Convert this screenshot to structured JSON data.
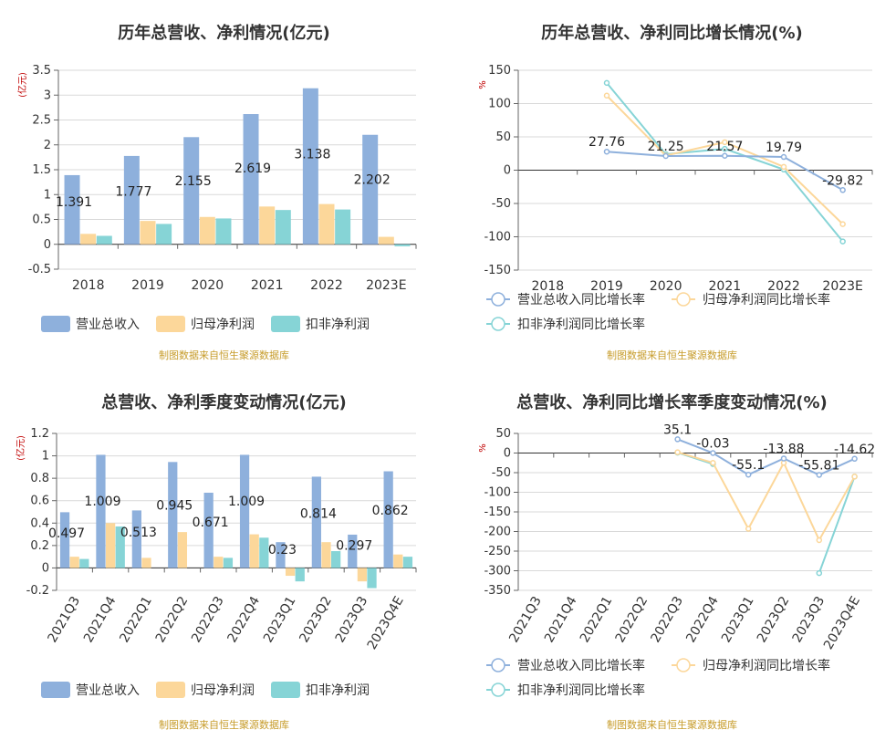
{
  "chart_data": [
    {
      "id": "annual_bar",
      "type": "bar",
      "title": "历年总营收、净利情况(亿元)",
      "ylabel": "(亿元)",
      "source": "制图数据来自恒生聚源数据库",
      "categories": [
        "2018",
        "2019",
        "2020",
        "2021",
        "2022",
        "2023E"
      ],
      "ylim": [
        -0.5,
        3.5
      ],
      "yticks": [
        -0.5,
        0,
        0.5,
        1,
        1.5,
        2,
        2.5,
        3,
        3.5
      ],
      "series": [
        {
          "name": "营业总收入",
          "color": "#8eb0dc",
          "values": [
            1.391,
            1.777,
            2.155,
            2.619,
            3.138,
            2.202
          ]
        },
        {
          "name": "归母净利润",
          "color": "#fcd79a",
          "values": [
            0.21,
            0.47,
            0.55,
            0.76,
            0.81,
            0.15
          ]
        },
        {
          "name": "扣非净利润",
          "color": "#86d4d6",
          "values": [
            0.17,
            0.41,
            0.52,
            0.69,
            0.7,
            -0.04
          ]
        }
      ],
      "data_labels": [
        "1.391",
        "1.777",
        "2.155",
        "2.619",
        "3.138",
        "2.202"
      ],
      "grid": true,
      "legend": "bottom"
    },
    {
      "id": "annual_line",
      "type": "line",
      "title": "历年总营收、净利同比增长情况(%)",
      "ylabel": "%",
      "source": "制图数据来自恒生聚源数据库",
      "categories": [
        "2018",
        "2019",
        "2020",
        "2021",
        "2022",
        "2023E"
      ],
      "ylim": [
        -150,
        150
      ],
      "yticks": [
        -150,
        -100,
        -50,
        0,
        50,
        100,
        150
      ],
      "series": [
        {
          "name": "营业总收入同比增长率",
          "color": "#8eb0dc",
          "values": [
            null,
            27.76,
            21.25,
            21.57,
            19.79,
            -29.82
          ]
        },
        {
          "name": "归母净利润同比增长率",
          "color": "#fcd79a",
          "values": [
            null,
            112,
            22,
            42,
            5,
            -81
          ]
        },
        {
          "name": "扣非净利润同比增长率",
          "color": "#86d4d6",
          "values": [
            null,
            131,
            24,
            32,
            1,
            -107
          ]
        }
      ],
      "data_labels": [
        "",
        "27.76",
        "21.25",
        "21.57",
        "19.79",
        "-29.82"
      ],
      "grid": true,
      "legend": "bottom"
    },
    {
      "id": "quarter_bar",
      "type": "bar",
      "title": "总营收、净利季度变动情况(亿元)",
      "ylabel": "(亿元)",
      "source": "制图数据来自恒生聚源数据库",
      "categories": [
        "2021Q3",
        "2021Q4",
        "2022Q1",
        "2022Q2",
        "2022Q3",
        "2022Q4",
        "2023Q1",
        "2023Q2",
        "2023Q3",
        "2023Q4E"
      ],
      "ylim": [
        -0.2,
        1.2
      ],
      "yticks": [
        -0.2,
        0,
        0.2,
        0.4,
        0.6,
        0.8,
        1,
        1.2
      ],
      "series": [
        {
          "name": "营业总收入",
          "color": "#8eb0dc",
          "values": [
            0.497,
            1.009,
            0.513,
            0.945,
            0.671,
            1.009,
            0.23,
            0.814,
            0.297,
            0.862
          ]
        },
        {
          "name": "归母净利润",
          "color": "#fcd79a",
          "values": [
            0.1,
            0.4,
            0.09,
            0.32,
            0.1,
            0.3,
            -0.07,
            0.23,
            -0.12,
            0.12
          ]
        },
        {
          "name": "扣非净利润",
          "color": "#86d4d6",
          "values": [
            0.08,
            0.37,
            null,
            null,
            0.09,
            0.27,
            -0.12,
            0.15,
            -0.18,
            0.1
          ]
        }
      ],
      "data_labels": [
        "0.497",
        "1.009",
        "0.513",
        "0.945",
        "0.671",
        "1.009",
        "0.23",
        "0.814",
        "0.297",
        "0.862"
      ],
      "grid": true,
      "legend": "bottom"
    },
    {
      "id": "quarter_line",
      "type": "line",
      "title": "总营收、净利同比增长率季度变动情况(%)",
      "ylabel": "%",
      "source": "制图数据来自恒生聚源数据库",
      "categories": [
        "2021Q3",
        "2021Q4",
        "2022Q1",
        "2022Q2",
        "2022Q3",
        "2022Q4",
        "2023Q1",
        "2023Q2",
        "2023Q3",
        "2023Q4E"
      ],
      "ylim": [
        -350,
        50
      ],
      "yticks": [
        -350,
        -300,
        -250,
        -200,
        -150,
        -100,
        -50,
        0,
        50
      ],
      "series": [
        {
          "name": "营业总收入同比增长率",
          "color": "#8eb0dc",
          "values": [
            null,
            null,
            null,
            null,
            35.1,
            -0.03,
            -55.1,
            -13.88,
            -55.81,
            -14.62
          ]
        },
        {
          "name": "归母净利润同比增长率",
          "color": "#fcd79a",
          "values": [
            null,
            null,
            null,
            null,
            2,
            -25,
            -193,
            -25,
            -222,
            -60
          ]
        },
        {
          "name": "扣非净利润同比增长率",
          "color": "#86d4d6",
          "values": [
            null,
            null,
            null,
            null,
            1,
            -28,
            null,
            null,
            -306,
            -60
          ]
        }
      ],
      "data_labels": [
        "",
        "",
        "",
        "",
        "35.1",
        "-0.03",
        "-55.1",
        "-13.88",
        "-55.81",
        "-14.62"
      ],
      "grid": true,
      "legend": "bottom"
    }
  ]
}
